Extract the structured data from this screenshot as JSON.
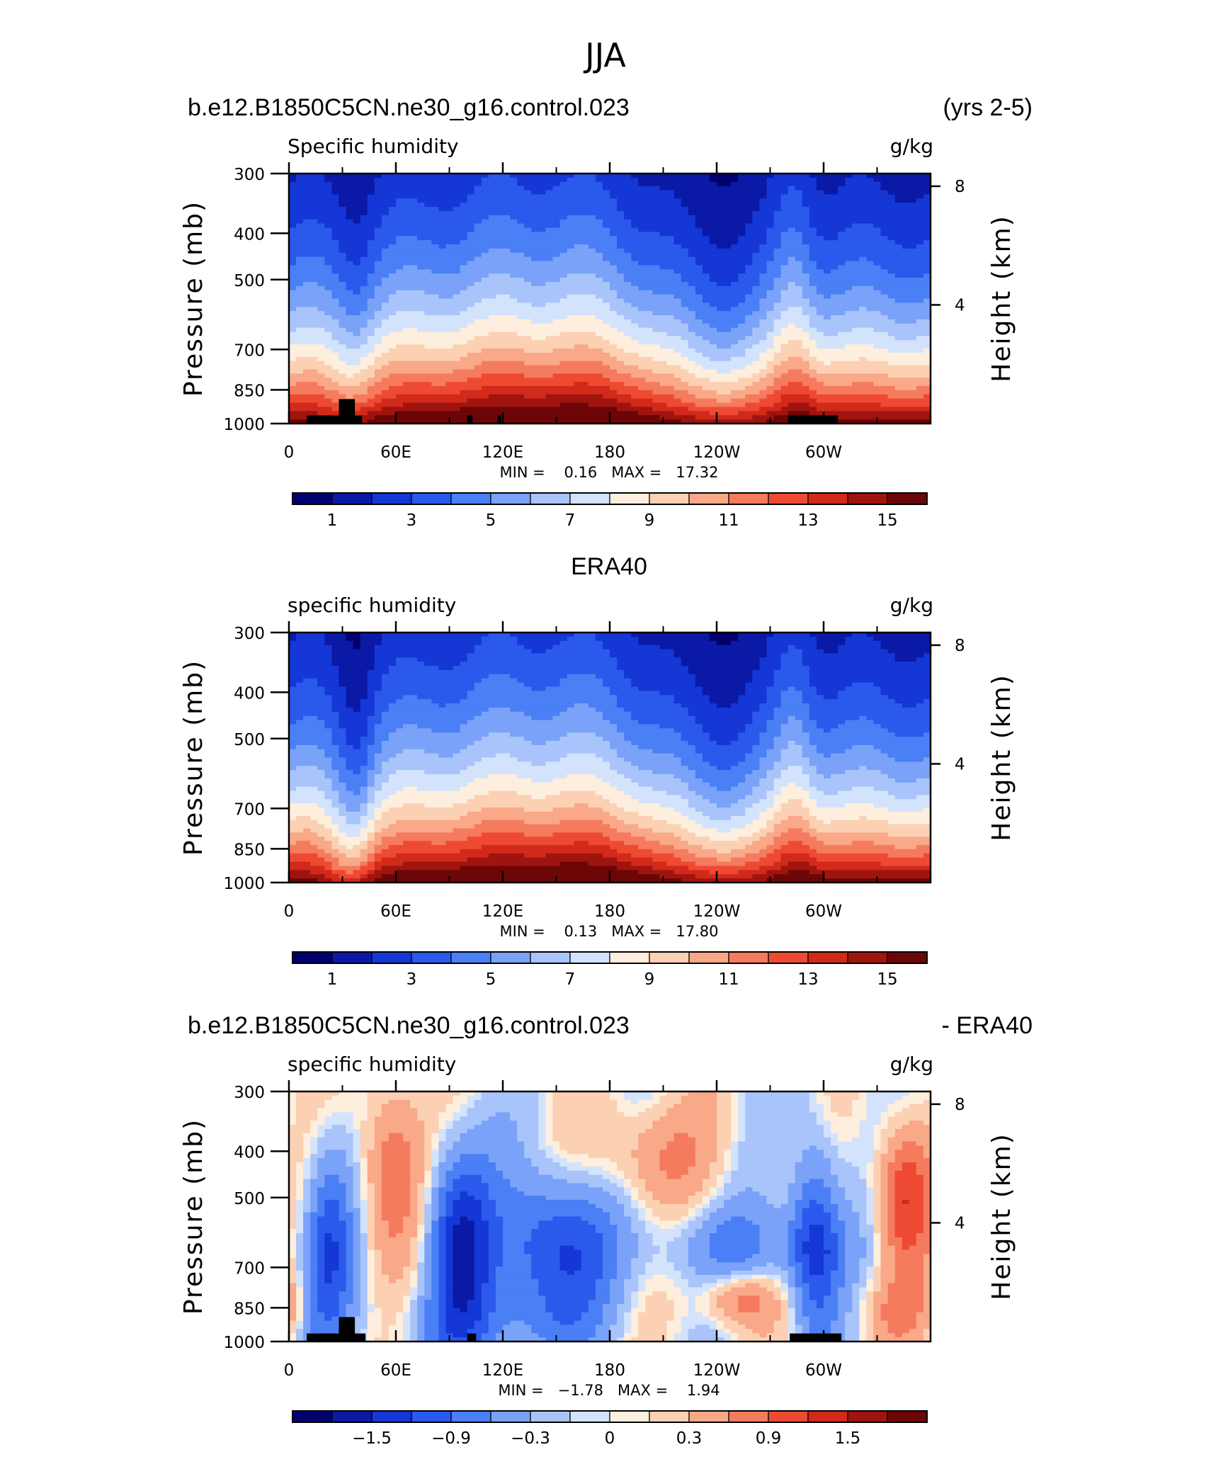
{
  "figure_title": "JJA",
  "palette": [
    "#02006e",
    "#0a19a6",
    "#1437d6",
    "#2a59ec",
    "#4a7ff5",
    "#7aa2f8",
    "#a8c4fa",
    "#d3e3fc",
    "#fdeedd",
    "#fcd0b3",
    "#f9a888",
    "#f57b5e",
    "#ee4a33",
    "#d12a1a",
    "#a01410",
    "#6d0606"
  ],
  "panels": [
    {
      "id": "model",
      "header_left": "b.e12.B1850C5CN.ne30_g16.control.023",
      "header_center": "",
      "header_right": "(yrs 2-5)",
      "label_left": "Specific humidity",
      "label_right": "g/kg",
      "min_max": "MIN =    0.16   MAX =   17.32",
      "colorbar_ticks": [
        {
          "index": 1,
          "label": "1"
        },
        {
          "index": 3,
          "label": "3"
        },
        {
          "index": 5,
          "label": "5"
        },
        {
          "index": 7,
          "label": "7"
        },
        {
          "index": 9,
          "label": "9"
        },
        {
          "index": 11,
          "label": "11"
        },
        {
          "index": 13,
          "label": "13"
        },
        {
          "index": 15,
          "label": "15"
        }
      ]
    },
    {
      "id": "obs",
      "header_left": "",
      "header_center": "ERA40",
      "header_right": "",
      "label_left": "specific humidity",
      "label_right": "g/kg",
      "min_max": "MIN =    0.13   MAX =   17.80",
      "colorbar_ticks": [
        {
          "index": 1,
          "label": "1"
        },
        {
          "index": 3,
          "label": "3"
        },
        {
          "index": 5,
          "label": "5"
        },
        {
          "index": 7,
          "label": "7"
        },
        {
          "index": 9,
          "label": "9"
        },
        {
          "index": 11,
          "label": "11"
        },
        {
          "index": 13,
          "label": "13"
        },
        {
          "index": 15,
          "label": "15"
        }
      ]
    },
    {
      "id": "diff",
      "header_left": "b.e12.B1850C5CN.ne30_g16.control.023",
      "header_center": "",
      "header_right": "- ERA40",
      "label_left": "specific humidity",
      "label_right": "g/kg",
      "min_max": "MIN =   −1.78   MAX =    1.94",
      "colorbar_ticks": [
        {
          "index": 2,
          "label": "−1.5"
        },
        {
          "index": 4,
          "label": "−0.9"
        },
        {
          "index": 6,
          "label": "−0.3"
        },
        {
          "index": 8,
          "label": "0"
        },
        {
          "index": 10,
          "label": "0.3"
        },
        {
          "index": 12,
          "label": "0.9"
        },
        {
          "index": 14,
          "label": "1.5"
        }
      ]
    }
  ],
  "chart_data": {
    "type": "heatmap",
    "x_axis": {
      "range": [
        0,
        360
      ],
      "major_ticks": [
        {
          "value": 0,
          "label": "0"
        },
        {
          "value": 60,
          "label": "60E"
        },
        {
          "value": 120,
          "label": "120E"
        },
        {
          "value": 180,
          "label": "180"
        },
        {
          "value": 240,
          "label": "120W"
        },
        {
          "value": 300,
          "label": "60W"
        }
      ],
      "minor_ticks": [
        30,
        90,
        150,
        210,
        270,
        330
      ]
    },
    "y_axis_left": {
      "label": "Pressure (mb)",
      "range": [
        300,
        1000
      ],
      "ticks": [
        {
          "value": 300,
          "label": "300"
        },
        {
          "value": 400,
          "label": "400"
        },
        {
          "value": 500,
          "label": "500"
        },
        {
          "value": 700,
          "label": "700"
        },
        {
          "value": 850,
          "label": "850"
        },
        {
          "value": 1000,
          "label": "1000"
        }
      ]
    },
    "y_axis_right": {
      "label": "Height (km)",
      "ticks": [
        {
          "value": 8,
          "label": "8"
        },
        {
          "value": 4,
          "label": "4"
        }
      ]
    },
    "colorbar_levels_absolute": [
      1,
      2,
      3,
      4,
      5,
      6,
      7,
      8,
      9,
      10,
      11,
      12,
      13,
      14,
      15
    ],
    "colorbar_levels_difference": [
      -1.8,
      -1.5,
      -1.2,
      -0.9,
      -0.6,
      -0.3,
      -0.1,
      0,
      0.1,
      0.3,
      0.6,
      0.9,
      1.2,
      1.5,
      1.8
    ],
    "series": [
      {
        "panel": "model",
        "min": 0.16,
        "max": 17.32
      },
      {
        "panel": "obs",
        "min": 0.13,
        "max": 17.8
      },
      {
        "panel": "diff",
        "min": -1.78,
        "max": 1.94
      }
    ]
  }
}
